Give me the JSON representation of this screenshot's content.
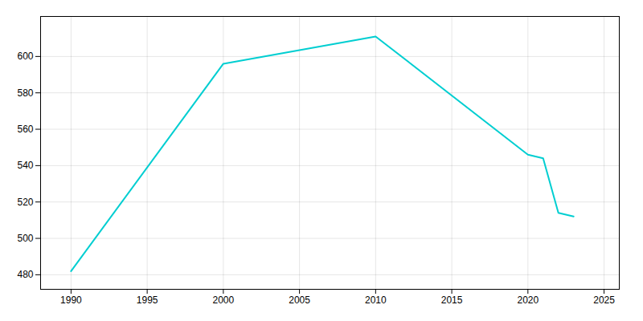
{
  "chart_data": {
    "type": "line",
    "x": [
      1990,
      2000,
      2010,
      2020,
      2021,
      2022,
      2023
    ],
    "values": [
      482,
      596,
      611,
      546,
      544,
      514,
      512
    ],
    "color": "#00CED1",
    "xlim": [
      1988,
      2026
    ],
    "ylim": [
      472,
      622
    ],
    "xticks": [
      1990,
      1995,
      2000,
      2005,
      2010,
      2015,
      2020,
      2025
    ],
    "yticks": [
      480,
      500,
      520,
      540,
      560,
      580,
      600
    ],
    "grid": true
  }
}
